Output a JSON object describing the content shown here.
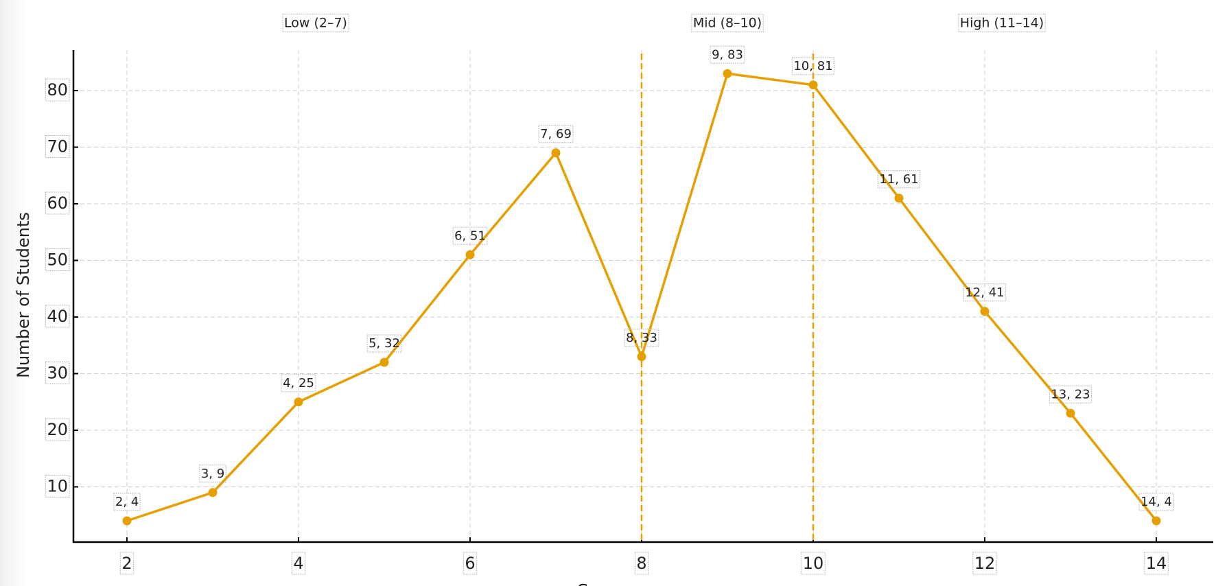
{
  "chart_data": {
    "type": "line",
    "title": "",
    "xlabel": "Score",
    "ylabel": "Number of Students",
    "x": [
      2,
      3,
      4,
      5,
      6,
      7,
      8,
      9,
      10,
      11,
      12,
      13,
      14
    ],
    "series": [
      {
        "name": "Students",
        "values": [
          4,
          9,
          25,
          32,
          51,
          69,
          33,
          83,
          81,
          61,
          41,
          23,
          4
        ],
        "color": "#E69F00"
      }
    ],
    "point_labels": [
      "2, 4",
      "3, 9",
      "4, 25",
      "5, 32",
      "6, 51",
      "7, 69",
      "8, 33",
      "9, 83",
      "10, 81",
      "11, 61",
      "12, 41",
      "13, 23",
      "14, 4"
    ],
    "xticks": [
      "2",
      "4",
      "6",
      "8",
      "10",
      "12",
      "14"
    ],
    "xtick_values": [
      2,
      4,
      6,
      8,
      10,
      12,
      14
    ],
    "yticks": [
      "10",
      "20",
      "30",
      "40",
      "50",
      "60",
      "70",
      "80"
    ],
    "ytick_values": [
      10,
      20,
      30,
      40,
      50,
      60,
      70,
      80
    ],
    "xlim": [
      1.3,
      15.3
    ],
    "ylim": [
      0,
      88
    ],
    "grid": true,
    "vlines": [
      {
        "x": 8,
        "color": "#E69F00"
      },
      {
        "x": 10,
        "color": "#E69F00"
      }
    ],
    "region_labels": [
      {
        "text": "Low (2–7)",
        "x": 4.2
      },
      {
        "text": "Mid (8–10)",
        "x": 9
      },
      {
        "text": "High (11–14)",
        "x": 12.2
      }
    ]
  }
}
